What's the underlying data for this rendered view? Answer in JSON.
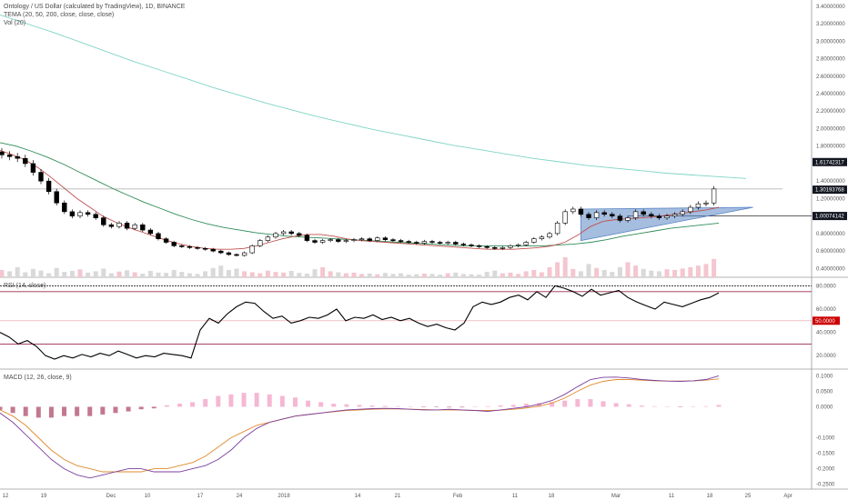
{
  "header": {
    "symbol_line": "Ontology / US Dollar (calculated by TradingView), 1D, BINANCE",
    "tema_line": "TEMA (20, 50, 200, close, close, close)",
    "vol_line": "Vol (20)"
  },
  "rsi_header": "RSI (14, close)",
  "macd_header": "MACD (12, 26, close, 9)",
  "colors": {
    "up": "#ffffff",
    "down": "#000000",
    "tema_fast": "#c0504d",
    "tema_mid": "#2e8b57",
    "tema_slow": "#7fd4c7",
    "triangle": "#5b87c5",
    "rsi_line": "#000000",
    "rsi_band": "#9c2b4a",
    "macd_line": "#7b3f9e",
    "signal_line": "#e08a2e",
    "hist_pos": "#f5b8d4",
    "hist_neg": "#c2788f",
    "tag_dark": "#131722",
    "tag_red": "#cc0000"
  },
  "chart_data": [
    {
      "type": "line",
      "panel": "price",
      "title": "Ontology / US Dollar (calculated by TradingView), 1D, BINANCE",
      "x_ticks": [
        "12",
        "19",
        "Dec",
        "10",
        "17",
        "24",
        "2018",
        "14",
        "21",
        "Feb",
        "11",
        "18",
        "Mar",
        "11",
        "18",
        "25",
        "Apr"
      ],
      "y_ticks": [
        "3.40000000",
        "3.20000000",
        "3.00000000",
        "2.80000000",
        "2.60000000",
        "2.40000000",
        "2.20000000",
        "2.00000000",
        "1.80000000",
        "1.60000000",
        "1.40000000",
        "1.20000000",
        "1.00000000",
        "0.80000000",
        "0.60000000",
        "0.40000000"
      ],
      "ylim": [
        0.3,
        3.45
      ],
      "series": [
        {
          "kind": "candles",
          "close": [
            1.7,
            1.68,
            1.66,
            1.6,
            1.5,
            1.4,
            1.28,
            1.15,
            1.05,
            1.0,
            1.04,
            1.02,
            0.98,
            0.9,
            0.88,
            0.92,
            0.86,
            0.9,
            0.84,
            0.8,
            0.74,
            0.7,
            0.66,
            0.65,
            0.64,
            0.63,
            0.62,
            0.6,
            0.58,
            0.56,
            0.55,
            0.58,
            0.66,
            0.72,
            0.76,
            0.8,
            0.82,
            0.8,
            0.78,
            0.72,
            0.7,
            0.72,
            0.73,
            0.71,
            0.72,
            0.73,
            0.74,
            0.72,
            0.75,
            0.73,
            0.72,
            0.71,
            0.7,
            0.69,
            0.71,
            0.7,
            0.69,
            0.7,
            0.68,
            0.67,
            0.66,
            0.65,
            0.64,
            0.63,
            0.64,
            0.66,
            0.67,
            0.7,
            0.74,
            0.76,
            0.8,
            0.92,
            1.05,
            1.08,
            1.02,
            0.98,
            1.04,
            1.02,
            1.0,
            0.95,
            0.98,
            1.05,
            1.02,
            1.0,
            0.98,
            1.0,
            1.02,
            1.05,
            1.1,
            1.14,
            1.15,
            1.31
          ]
        },
        {
          "name": "",
          "line": "tema_fast",
          "values": [
            1.75,
            1.7,
            1.64,
            1.55,
            1.44,
            1.32,
            1.2,
            1.1,
            1.0,
            0.93,
            0.87,
            0.82,
            0.77,
            0.72,
            0.68,
            0.65,
            0.63,
            0.62,
            0.62,
            0.63,
            0.66,
            0.7,
            0.74,
            0.77,
            0.79,
            0.79,
            0.77,
            0.74,
            0.72,
            0.71,
            0.7,
            0.69,
            0.68,
            0.67,
            0.66,
            0.65,
            0.64,
            0.63,
            0.62,
            0.62,
            0.62,
            0.63,
            0.64,
            0.66,
            0.7,
            0.78,
            0.88,
            0.94,
            0.96,
            0.97,
            0.98,
            0.99,
            1.01,
            1.03,
            1.05,
            1.07,
            1.1
          ]
        },
        {
          "name": "",
          "line": "tema_mid",
          "values": [
            1.84,
            1.8,
            1.74,
            1.67,
            1.59,
            1.5,
            1.41,
            1.32,
            1.24,
            1.16,
            1.09,
            1.02,
            0.96,
            0.91,
            0.87,
            0.84,
            0.81,
            0.79,
            0.77,
            0.76,
            0.75,
            0.74,
            0.73,
            0.72,
            0.71,
            0.7,
            0.69,
            0.68,
            0.67,
            0.66,
            0.66,
            0.66,
            0.66,
            0.66,
            0.66,
            0.67,
            0.68,
            0.7,
            0.73,
            0.77,
            0.8,
            0.83,
            0.86,
            0.88,
            0.9,
            0.92
          ]
        },
        {
          "name": "",
          "line": "tema_slow",
          "values": [
            3.3,
            3.2,
            3.1,
            2.99,
            2.88,
            2.77,
            2.67,
            2.57,
            2.47,
            2.38,
            2.29,
            2.21,
            2.13,
            2.06,
            1.99,
            1.93,
            1.87,
            1.81,
            1.76,
            1.71,
            1.66,
            1.62,
            1.58,
            1.55,
            1.52,
            1.49,
            1.47,
            1.45,
            1.43
          ]
        }
      ],
      "price_tags": [
        "1.61742317",
        "1.30193768",
        "1.00074142"
      ]
    },
    {
      "type": "bar",
      "panel": "volume",
      "title": "Vol (20)",
      "values": [
        22,
        18,
        30,
        15,
        25,
        20,
        12,
        28,
        16,
        19,
        24,
        14,
        18,
        26,
        12,
        17,
        21,
        15,
        11,
        19,
        14,
        13,
        22,
        16,
        12,
        10,
        18,
        28,
        35,
        22,
        26,
        18,
        15,
        12,
        20,
        16,
        14,
        19,
        13,
        11,
        24,
        30,
        18,
        15,
        12,
        14,
        10,
        11,
        9,
        13,
        10,
        12,
        8,
        9,
        11,
        10,
        8,
        12,
        14,
        10,
        9,
        8,
        16,
        20,
        12,
        14,
        10,
        18,
        22,
        15,
        30,
        45,
        60,
        25,
        18,
        40,
        28,
        22,
        16,
        30,
        45,
        35,
        25,
        20,
        18,
        24,
        22,
        26,
        30,
        35,
        40,
        55
      ]
    },
    {
      "type": "line",
      "panel": "rsi",
      "title": "RSI (14, close)",
      "y_ticks": [
        "80.0000",
        "60.0000",
        "40.0000",
        "20.0000"
      ],
      "tag": "50.0000",
      "ylim": [
        10,
        85
      ],
      "values": [
        40,
        36,
        30,
        33,
        28,
        20,
        17,
        20,
        18,
        21,
        19,
        22,
        20,
        24,
        21,
        18,
        20,
        19,
        22,
        21,
        20,
        18,
        42,
        52,
        48,
        56,
        62,
        66,
        65,
        58,
        52,
        54,
        48,
        50,
        53,
        52,
        55,
        60,
        50,
        53,
        52,
        55,
        51,
        53,
        50,
        52,
        48,
        45,
        47,
        44,
        42,
        48,
        62,
        66,
        64,
        66,
        70,
        72,
        68,
        75,
        70,
        80,
        78,
        75,
        71,
        77,
        72,
        74,
        76,
        70,
        66,
        63,
        60,
        66,
        64,
        62,
        65,
        68,
        70,
        74
      ]
    },
    {
      "type": "bar",
      "panel": "macd",
      "title": "MACD (12, 26, close, 9)",
      "y_ticks": [
        "0.1000",
        "0.0500",
        "0.0000",
        "-0.1000",
        "-0.1500",
        "-0.2000",
        "-0.2500"
      ],
      "ylim": [
        -0.26,
        0.11
      ],
      "series": [
        {
          "name": "",
          "line": "macd",
          "values": [
            -0.02,
            -0.05,
            -0.09,
            -0.13,
            -0.17,
            -0.2,
            -0.22,
            -0.23,
            -0.22,
            -0.21,
            -0.2,
            -0.2,
            -0.21,
            -0.21,
            -0.21,
            -0.2,
            -0.19,
            -0.17,
            -0.14,
            -0.1,
            -0.07,
            -0.05,
            -0.04,
            -0.03,
            -0.025,
            -0.02,
            -0.015,
            -0.01,
            -0.008,
            -0.006,
            -0.005,
            -0.006,
            -0.008,
            -0.01,
            -0.01,
            -0.008,
            -0.01,
            -0.012,
            -0.015,
            -0.01,
            -0.005,
            0.0,
            0.008,
            0.02,
            0.04,
            0.065,
            0.088,
            0.095,
            0.096,
            0.093,
            0.088,
            0.085,
            0.083,
            0.082,
            0.084,
            0.088,
            0.1
          ]
        },
        {
          "name": "",
          "line": "signal",
          "values": [
            -0.01,
            -0.03,
            -0.06,
            -0.1,
            -0.14,
            -0.17,
            -0.19,
            -0.2,
            -0.21,
            -0.21,
            -0.21,
            -0.21,
            -0.2,
            -0.2,
            -0.19,
            -0.18,
            -0.16,
            -0.13,
            -0.1,
            -0.08,
            -0.06,
            -0.05,
            -0.04,
            -0.03,
            -0.025,
            -0.02,
            -0.016,
            -0.012,
            -0.01,
            -0.008,
            -0.007,
            -0.007,
            -0.008,
            -0.009,
            -0.01,
            -0.01,
            -0.011,
            -0.012,
            -0.012,
            -0.011,
            -0.008,
            -0.004,
            0.002,
            0.012,
            0.028,
            0.05,
            0.07,
            0.082,
            0.088,
            0.088,
            0.086,
            0.084,
            0.083,
            0.083,
            0.084,
            0.086,
            0.09
          ]
        },
        {
          "name": "",
          "kind": "histogram",
          "values": [
            -0.01,
            -0.02,
            -0.03,
            -0.035,
            -0.035,
            -0.03,
            -0.03,
            -0.03,
            -0.025,
            -0.02,
            -0.015,
            -0.008,
            -0.005,
            0.005,
            0.01,
            0.015,
            0.025,
            0.035,
            0.04,
            0.045,
            0.045,
            0.04,
            0.035,
            0.03,
            0.02,
            0.015,
            0.01,
            0.008,
            0.006,
            0.004,
            0.003,
            0.002,
            0.0,
            -0.001,
            -0.001,
            -0.002,
            -0.002,
            0.0,
            0.002,
            0.004,
            0.006,
            0.01,
            0.012,
            0.015,
            0.02,
            0.025,
            0.025,
            0.018,
            0.012,
            0.008,
            0.004,
            0.002,
            0.001,
            -0.001,
            0.0,
            0.002,
            0.006
          ]
        }
      ]
    }
  ]
}
